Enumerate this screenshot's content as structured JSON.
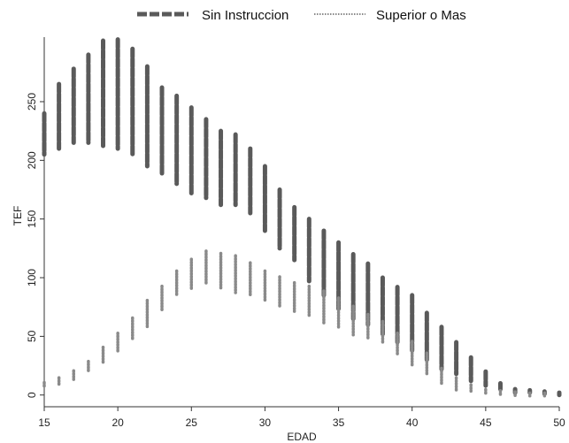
{
  "chart_data": {
    "type": "scatter",
    "title": "",
    "xlabel": "EDAD",
    "ylabel": "TEF",
    "xlim": [
      15,
      50
    ],
    "ylim": [
      -10,
      305
    ],
    "xticks": [
      15,
      20,
      25,
      30,
      35,
      40,
      45,
      50
    ],
    "yticks": [
      0,
      50,
      100,
      150,
      200,
      250
    ],
    "grid": false,
    "legend": {
      "position": "top"
    },
    "series": [
      {
        "name": "Sin Instruccion",
        "style": "dark-thick-dash",
        "color": "#5a5a5a",
        "ranges": [
          {
            "x": 15,
            "min": 205,
            "max": 240
          },
          {
            "x": 16,
            "min": 210,
            "max": 265
          },
          {
            "x": 17,
            "min": 215,
            "max": 278
          },
          {
            "x": 18,
            "min": 215,
            "max": 290
          },
          {
            "x": 19,
            "min": 212,
            "max": 302
          },
          {
            "x": 20,
            "min": 210,
            "max": 303
          },
          {
            "x": 21,
            "min": 205,
            "max": 295
          },
          {
            "x": 22,
            "min": 195,
            "max": 280
          },
          {
            "x": 23,
            "min": 188,
            "max": 262
          },
          {
            "x": 24,
            "min": 180,
            "max": 255
          },
          {
            "x": 25,
            "min": 172,
            "max": 245
          },
          {
            "x": 26,
            "min": 168,
            "max": 235
          },
          {
            "x": 27,
            "min": 162,
            "max": 225
          },
          {
            "x": 28,
            "min": 162,
            "max": 222
          },
          {
            "x": 29,
            "min": 155,
            "max": 210
          },
          {
            "x": 30,
            "min": 140,
            "max": 195
          },
          {
            "x": 31,
            "min": 125,
            "max": 175
          },
          {
            "x": 32,
            "min": 115,
            "max": 160
          },
          {
            "x": 33,
            "min": 97,
            "max": 150
          },
          {
            "x": 34,
            "min": 85,
            "max": 140
          },
          {
            "x": 35,
            "min": 72,
            "max": 130
          },
          {
            "x": 36,
            "min": 65,
            "max": 120
          },
          {
            "x": 37,
            "min": 60,
            "max": 112
          },
          {
            "x": 38,
            "min": 52,
            "max": 100
          },
          {
            "x": 39,
            "min": 45,
            "max": 92
          },
          {
            "x": 40,
            "min": 38,
            "max": 85
          },
          {
            "x": 41,
            "min": 30,
            "max": 70
          },
          {
            "x": 42,
            "min": 22,
            "max": 58
          },
          {
            "x": 43,
            "min": 18,
            "max": 45
          },
          {
            "x": 44,
            "min": 12,
            "max": 32
          },
          {
            "x": 45,
            "min": 8,
            "max": 20
          },
          {
            "x": 46,
            "min": 5,
            "max": 10
          },
          {
            "x": 47,
            "min": 2,
            "max": 5
          },
          {
            "x": 48,
            "min": 2,
            "max": 4
          },
          {
            "x": 49,
            "min": 1,
            "max": 3
          },
          {
            "x": 50,
            "min": 0,
            "max": 2
          }
        ]
      },
      {
        "name": "Superior o Mas",
        "style": "light-dotted",
        "color": "#8a8a8a",
        "ranges": [
          {
            "x": 15,
            "min": 8,
            "max": 10
          },
          {
            "x": 16,
            "min": 10,
            "max": 14
          },
          {
            "x": 17,
            "min": 14,
            "max": 20
          },
          {
            "x": 18,
            "min": 20,
            "max": 28
          },
          {
            "x": 19,
            "min": 28,
            "max": 40
          },
          {
            "x": 20,
            "min": 38,
            "max": 52
          },
          {
            "x": 21,
            "min": 48,
            "max": 65
          },
          {
            "x": 22,
            "min": 58,
            "max": 80
          },
          {
            "x": 23,
            "min": 72,
            "max": 92
          },
          {
            "x": 24,
            "min": 85,
            "max": 105
          },
          {
            "x": 25,
            "min": 90,
            "max": 115
          },
          {
            "x": 26,
            "min": 95,
            "max": 122
          },
          {
            "x": 27,
            "min": 92,
            "max": 120
          },
          {
            "x": 28,
            "min": 88,
            "max": 118
          },
          {
            "x": 29,
            "min": 85,
            "max": 112
          },
          {
            "x": 30,
            "min": 80,
            "max": 105
          },
          {
            "x": 31,
            "min": 75,
            "max": 100
          },
          {
            "x": 32,
            "min": 72,
            "max": 95
          },
          {
            "x": 33,
            "min": 68,
            "max": 92
          },
          {
            "x": 34,
            "min": 62,
            "max": 88
          },
          {
            "x": 35,
            "min": 58,
            "max": 82
          },
          {
            "x": 36,
            "min": 52,
            "max": 75
          },
          {
            "x": 37,
            "min": 48,
            "max": 68
          },
          {
            "x": 38,
            "min": 45,
            "max": 62
          },
          {
            "x": 39,
            "min": 35,
            "max": 52
          },
          {
            "x": 40,
            "min": 25,
            "max": 45
          },
          {
            "x": 41,
            "min": 18,
            "max": 35
          },
          {
            "x": 42,
            "min": 10,
            "max": 22
          },
          {
            "x": 43,
            "min": 5,
            "max": 14
          },
          {
            "x": 44,
            "min": 4,
            "max": 8
          },
          {
            "x": 45,
            "min": 2,
            "max": 4
          },
          {
            "x": 46,
            "min": 1,
            "max": 3
          },
          {
            "x": 47,
            "min": 0,
            "max": 2
          },
          {
            "x": 48,
            "min": 0,
            "max": 1
          },
          {
            "x": 49,
            "min": 0,
            "max": 1
          }
        ]
      }
    ]
  }
}
